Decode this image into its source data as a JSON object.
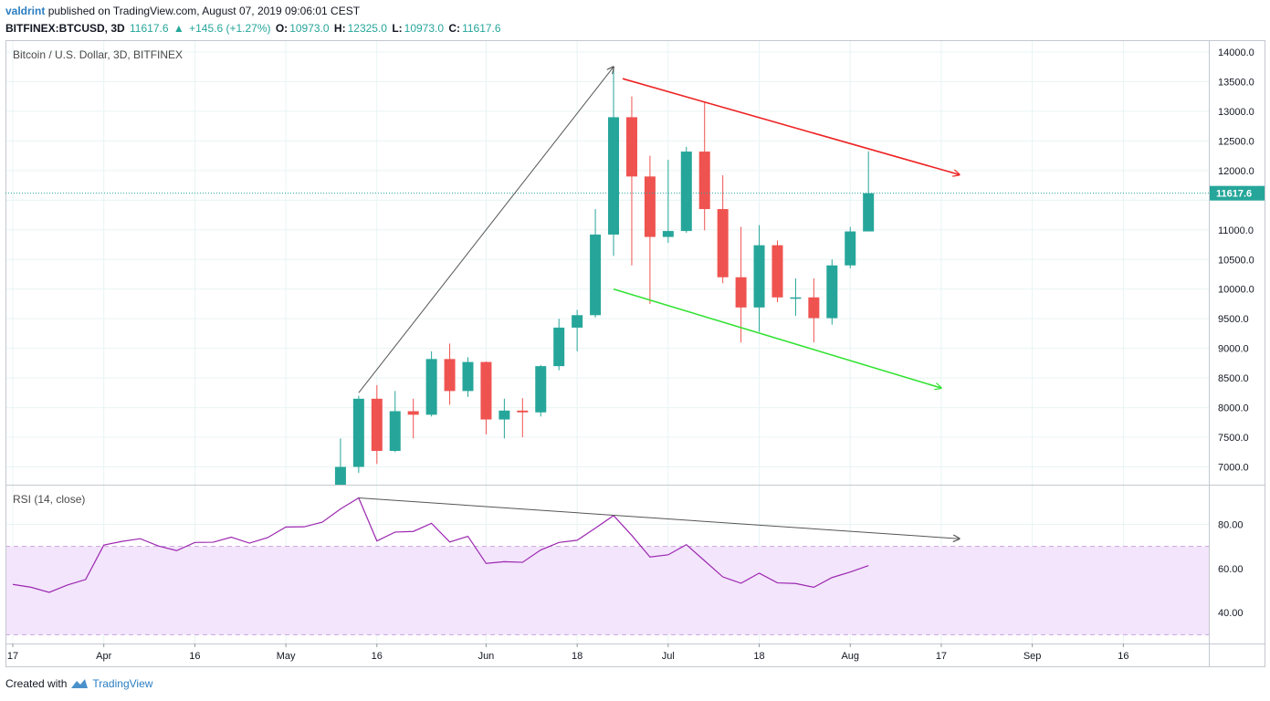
{
  "header": {
    "author": "valdrint",
    "published": "published on TradingView.com, August 07, 2019 09:06:01 CEST",
    "symbol": "BITFINEX:BTCUSD, 3D",
    "last": "11617.6",
    "change_arrow": "▲",
    "change": "+145.6 (+1.27%)",
    "o_label": "O:",
    "o": "10973.0",
    "h_label": "H:",
    "h": "12325.0",
    "l_label": "L:",
    "l": "10973.0",
    "c_label": "C:",
    "c": "11617.6"
  },
  "footer": {
    "created_with": "Created with",
    "brand": "TradingView"
  },
  "colors": {
    "up": "#26a69a",
    "down": "#ef5350",
    "grid": "#e8f4f3",
    "rsi_line": "#9c27b0",
    "rsi_band": "#f3e5fc",
    "resistance": "#ee2424",
    "support": "#33e233",
    "trend": "#555555",
    "price_tag": "#26a69a"
  },
  "chart_data": [
    {
      "type": "candlestick",
      "title": "Bitcoin / U.S. Dollar, 3D, BITFINEX",
      "ylim": [
        6700,
        14200
      ],
      "yticks": [
        "14000.0",
        "13500.0",
        "13000.0",
        "12500.0",
        "12000.0",
        "11500.0",
        "11000.0",
        "10500.0",
        "10000.0",
        "9500.0",
        "9000.0",
        "8500.0",
        "8000.0",
        "7500.0",
        "7000.0"
      ],
      "ytick_values": [
        14000,
        13500,
        13000,
        12500,
        12000,
        11500,
        11000,
        10500,
        10000,
        9500,
        9000,
        8500,
        8000,
        7500,
        7000
      ],
      "xticks": [
        "17",
        "Apr",
        "16",
        "May",
        "16",
        "Jun",
        "18",
        "Jul",
        "18",
        "Aug",
        "17",
        "Sep",
        "16"
      ],
      "xtick_index": [
        0,
        10,
        20,
        30,
        40,
        52,
        62,
        72,
        82,
        92,
        102,
        112,
        122
      ],
      "last_price": 11617.6,
      "last_price_label": "11617.6",
      "candles": [
        {
          "i": 36,
          "o": 6650,
          "h": 7480,
          "l": 6600,
          "c": 7000
        },
        {
          "i": 38,
          "o": 7000,
          "h": 8200,
          "l": 6900,
          "c": 8150
        },
        {
          "i": 40,
          "o": 8150,
          "h": 8380,
          "l": 7050,
          "c": 7270
        },
        {
          "i": 42,
          "o": 7270,
          "h": 8280,
          "l": 7250,
          "c": 7940
        },
        {
          "i": 44,
          "o": 7940,
          "h": 8150,
          "l": 7480,
          "c": 7880
        },
        {
          "i": 46,
          "o": 7880,
          "h": 8950,
          "l": 7850,
          "c": 8820
        },
        {
          "i": 48,
          "o": 8820,
          "h": 9080,
          "l": 8050,
          "c": 8280
        },
        {
          "i": 50,
          "o": 8280,
          "h": 8850,
          "l": 8180,
          "c": 8770
        },
        {
          "i": 52,
          "o": 8770,
          "h": 8780,
          "l": 7550,
          "c": 7800
        },
        {
          "i": 54,
          "o": 7800,
          "h": 8150,
          "l": 7480,
          "c": 7950
        },
        {
          "i": 56,
          "o": 7950,
          "h": 8160,
          "l": 7500,
          "c": 7920
        },
        {
          "i": 58,
          "o": 7920,
          "h": 8720,
          "l": 7850,
          "c": 8700
        },
        {
          "i": 60,
          "o": 8700,
          "h": 9500,
          "l": 8630,
          "c": 9350
        },
        {
          "i": 62,
          "o": 9350,
          "h": 9650,
          "l": 8950,
          "c": 9560
        },
        {
          "i": 64,
          "o": 9560,
          "h": 11350,
          "l": 9520,
          "c": 10920
        },
        {
          "i": 66,
          "o": 10920,
          "h": 13750,
          "l": 10560,
          "c": 12900
        },
        {
          "i": 68,
          "o": 12900,
          "h": 13250,
          "l": 10400,
          "c": 11900
        },
        {
          "i": 70,
          "o": 11900,
          "h": 12250,
          "l": 9750,
          "c": 10880
        },
        {
          "i": 72,
          "o": 10880,
          "h": 12180,
          "l": 10780,
          "c": 10980
        },
        {
          "i": 74,
          "o": 10980,
          "h": 12400,
          "l": 10950,
          "c": 12320
        },
        {
          "i": 76,
          "o": 12320,
          "h": 13150,
          "l": 10990,
          "c": 11350
        },
        {
          "i": 78,
          "o": 11350,
          "h": 11920,
          "l": 10100,
          "c": 10200
        },
        {
          "i": 80,
          "o": 10200,
          "h": 11050,
          "l": 9100,
          "c": 9690
        },
        {
          "i": 82,
          "o": 9690,
          "h": 11080,
          "l": 9280,
          "c": 10740
        },
        {
          "i": 84,
          "o": 10740,
          "h": 10820,
          "l": 9780,
          "c": 9860
        },
        {
          "i": 86,
          "o": 9860,
          "h": 10180,
          "l": 9550,
          "c": 9860
        },
        {
          "i": 88,
          "o": 9860,
          "h": 10180,
          "l": 9100,
          "c": 9510
        },
        {
          "i": 90,
          "o": 9510,
          "h": 10500,
          "l": 9400,
          "c": 10400
        },
        {
          "i": 92,
          "o": 10400,
          "h": 11050,
          "l": 10350,
          "c": 10973
        },
        {
          "i": 94,
          "o": 10973,
          "h": 12325,
          "l": 10973,
          "c": 11617.6
        }
      ]
    },
    {
      "type": "line",
      "title": "RSI (14, close)",
      "ylim": [
        26,
        98
      ],
      "yticks": [
        "80.00",
        "60.00",
        "40.00"
      ],
      "ytick_values": [
        80,
        60,
        40
      ],
      "overbought": 70,
      "oversold": 30,
      "series": [
        {
          "x": [
            0,
            2,
            4,
            6,
            8,
            10,
            12,
            14,
            16,
            18,
            20,
            22,
            24,
            26,
            28,
            30,
            32,
            34,
            36,
            38,
            40,
            42,
            44,
            46,
            48,
            50,
            52,
            54,
            56,
            58,
            60,
            62,
            64,
            66,
            68,
            70,
            72,
            74,
            76,
            78,
            80,
            82,
            84,
            86,
            88,
            90,
            92,
            94
          ],
          "values": [
            52.8,
            51.5,
            49.2,
            52.5,
            55,
            70.6,
            72.3,
            73.5,
            70.2,
            68.1,
            71.8,
            71.9,
            74.2,
            71.5,
            74,
            78.8,
            78.9,
            81,
            87,
            92,
            72.5,
            76.5,
            76.8,
            80.5,
            72,
            74.6,
            62.3,
            63.1,
            62.8,
            68.4,
            71.8,
            72.8,
            78.3,
            84,
            75,
            65.2,
            66.2,
            70.8,
            63.5,
            56.2,
            53.3,
            57.9,
            53.5,
            53.2,
            51.5,
            55.9,
            58.4,
            61.3
          ]
        }
      ]
    }
  ]
}
